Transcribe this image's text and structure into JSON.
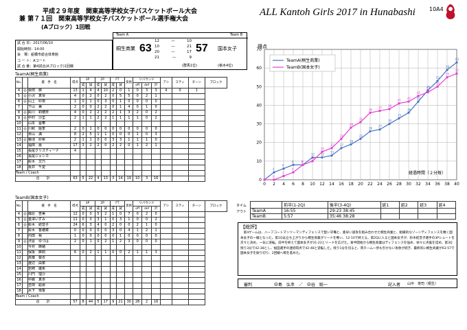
{
  "header": {
    "line1": "平成２９年度　関東高等学校女子バスケットボール大会",
    "line2": "兼 第７１回　関東高等学校女子バスケットボール選手権大会",
    "title_en": "ALL Kantoh Girls 2017 in Hunabashi",
    "game_code": "10A4",
    "block_label": "(Aブロック）1回戦"
  },
  "info": {
    "rows": [
      "試 合 日：2017/06/10",
      "開始時刻：14:00",
      "会　場：船橋市総合体育館",
      "コ ー ト：Aコート",
      "試 合 番：第4試合(Aブロック)1回戦"
    ]
  },
  "scoreboard": {
    "teamA_label": "Team A",
    "teamB_label": "Team B",
    "teamA": "桐生商業",
    "teamB": "国本女子",
    "scoreA": "63",
    "scoreB": "57",
    "quarters": [
      [
        "12",
        "10"
      ],
      [
        "10",
        "21"
      ],
      [
        "20",
        "17"
      ],
      [
        "21",
        "9"
      ]
    ],
    "teamA_seed": "(群馬1位)",
    "teamB_seed": "(栃木4位)"
  },
  "teamA": {
    "title": "TeamA(桐生商業)",
    "cols": [
      "No.",
      "",
      "選　手　名",
      "得点",
      "3P",
      "",
      "2P",
      "",
      "FT",
      "",
      "反則",
      "リバウンド",
      "",
      "",
      "アシ",
      "スティ",
      "ターン",
      "ブロック"
    ],
    "sub": [
      "成",
      "試",
      "成",
      "試",
      "成",
      "試",
      "off",
      "def",
      "計"
    ],
    "rows": [
      [
        "4",
        "◎",
        "栗田　麻",
        "13",
        "1",
        "4",
        "4",
        "10",
        "2",
        "0",
        "1",
        "0",
        "3",
        "3",
        "4",
        "0",
        "1"
      ],
      [
        "5",
        "◎",
        "小沢　真琴",
        "4",
        "0",
        "2",
        "0",
        "2",
        "0",
        "5",
        "5",
        "0",
        "2",
        "1"
      ],
      [
        "6",
        "◎",
        "山上　紗夜",
        "1",
        "0",
        "1",
        "0",
        "3",
        "0",
        "1",
        "0",
        "0",
        "0",
        "0"
      ],
      [
        "7",
        "",
        "下山　兼",
        "2",
        "0",
        "0",
        "2",
        "2",
        "0",
        "1",
        "4",
        "0",
        "1",
        "0"
      ],
      [
        "8",
        "◎",
        "鈴川　莉穂奈",
        "4",
        "0",
        "2",
        "2",
        "2",
        "2",
        "1",
        "3",
        "2",
        "0",
        "2"
      ],
      [
        "9",
        "◎",
        "中村　沙里",
        "2",
        "1",
        "1",
        "2",
        "2",
        "1",
        "1",
        "1",
        "1",
        "0",
        "2"
      ],
      [
        "10",
        "",
        "山本　蓉華",
        "",
        "",
        "",
        "",
        "",
        "",
        "",
        "",
        "",
        "",
        ""
      ],
      [
        "11",
        "◎",
        "川和　姫季",
        "2",
        "0",
        "1",
        "0",
        "0",
        "0",
        "0",
        "0",
        "0",
        "0",
        "0"
      ],
      [
        "12",
        "",
        "米山　満",
        "8",
        "2",
        "5",
        "1",
        "1",
        "0",
        "0",
        "0",
        "1",
        "0",
        "3"
      ],
      [
        "13",
        "◎",
        "菊池　紗希",
        "2",
        "1",
        "1",
        "0",
        "0",
        "3",
        "3",
        "1",
        "1",
        "1",
        "0"
      ],
      [
        "14",
        "",
        "福田　蕾",
        "17",
        "3",
        "2",
        "2",
        "0",
        "2",
        "2",
        "0",
        "1",
        "2",
        "1"
      ],
      [
        "15",
        "",
        "長尾クリスティーナ",
        "4",
        "",
        "",
        "",
        "",
        "",
        "",
        "",
        "",
        "",
        ""
      ],
      [
        "16",
        "",
        "長尾ジェシカ",
        "",
        "",
        "",
        "",
        "",
        "",
        "",
        "",
        "",
        "",
        ""
      ],
      [
        "17",
        "",
        "鈴木　文乃",
        "",
        "",
        "",
        "",
        "",
        "",
        "",
        "",
        "",
        "",
        ""
      ],
      [
        "18",
        "",
        "坂井　千愛",
        "",
        "",
        "",
        "",
        "",
        "",
        "",
        "",
        "",
        "",
        ""
      ]
    ],
    "coach_row": "Team / Coach",
    "total_label": "合　　計",
    "totals": [
      "63",
      "5",
      "22",
      "4",
      "13",
      "3",
      "14",
      "19",
      "10",
      "3",
      "16"
    ]
  },
  "teamB": {
    "title": "TeamB(国本女子)",
    "rows": [
      [
        "4",
        "◎",
        "篠原　杏美",
        "12",
        "0",
        "0",
        "5",
        "2",
        "1",
        "0",
        "7",
        "0",
        "2",
        "0"
      ],
      [
        "5",
        "◎",
        "金澤いずみ",
        "11",
        "0",
        "0",
        "3",
        "1",
        "0",
        "3",
        "1",
        "0",
        "0",
        "2"
      ],
      [
        "6",
        "◎",
        "鈴木　結音子",
        "24",
        "6",
        "3",
        "4",
        "0",
        "2",
        "0",
        "0",
        "2",
        "1",
        "0"
      ],
      [
        "7",
        "",
        "鈴木　香穂菜",
        "0",
        "0",
        "0",
        "0",
        "0",
        "3",
        "0",
        "4",
        "1",
        "2",
        "1"
      ],
      [
        "8",
        "",
        "内田　裕",
        "1",
        "0",
        "0",
        "0",
        "0",
        "0",
        "1",
        "0",
        "0",
        "0",
        "0"
      ],
      [
        "9",
        "◎",
        "渋谷　ゆづは",
        "2",
        "0",
        "1",
        "0",
        "2",
        "1",
        "2",
        "3",
        "0",
        "0",
        "0"
      ],
      [
        "10",
        "",
        "今井　麻緒",
        "",
        "",
        "",
        "",
        "",
        "",
        "",
        "",
        "",
        "",
        ""
      ],
      [
        "11",
        "",
        "保坂　麻莉",
        "6",
        "0",
        "2",
        "1",
        "1",
        "0",
        "0",
        "2",
        "1",
        "1",
        "3"
      ],
      [
        "12",
        "",
        "高橋　葵衣",
        "",
        "",
        "",
        "",
        "",
        "",
        "",
        "",
        "",
        "",
        ""
      ],
      [
        "13",
        "",
        "渡辺　由菜",
        "",
        "",
        "",
        "",
        "",
        "",
        "",
        "",
        "",
        "",
        ""
      ],
      [
        "14",
        "",
        "岩崎　雛希",
        "",
        "",
        "",
        "",
        "",
        "",
        "",
        "",
        "",
        "",
        ""
      ],
      [
        "15",
        "",
        "川門　理沙",
        "",
        "",
        "",
        "",
        "",
        "",
        "",
        "",
        "",
        "",
        ""
      ],
      [
        "16",
        "",
        "中嶋　真歩",
        "",
        "",
        "",
        "",
        "",
        "",
        "",
        "",
        "",
        "",
        ""
      ],
      [
        "17",
        "",
        "吉田　聡那",
        "",
        "",
        "",
        "",
        "",
        "",
        "",
        "",
        "",
        "",
        ""
      ],
      [
        "18",
        "",
        "木下　侑香",
        "",
        "",
        "",
        "",
        "",
        "",
        "",
        "",
        "",
        "",
        ""
      ]
    ],
    "coach_row": "Team / Coach",
    "total_label": "合　　計",
    "totals": [
      "57",
      "8",
      "44",
      "5",
      "17",
      "9",
      "21",
      "30",
      "28",
      "2",
      "16"
    ]
  },
  "timeline": {
    "label1": "タイム",
    "label2": "アウト",
    "headers": [
      "前半(1-2Q)",
      "後半(3-4Q)",
      "延1",
      "延2",
      "延3",
      "延4"
    ],
    "rows": [
      [
        "TeamA",
        "16:55",
        "29:23 38:45"
      ],
      [
        "TeamB",
        "5:57",
        "35:46 38:28"
      ]
    ]
  },
  "summary": {
    "title": "【総評】",
    "text": "　第4ゲームは、ハーフコートマンツーマンディフェンスで堅い守備と、素早い速攻を組み合わせた桐生商業と、組織的なゾーンディフェンスを敷く国本女子の一戦となった。第1Qは立ち上がりから桐生商業がリードを奪い、12-10で終える。第2Qに入ると国本女子が、鈴木結音子選手の3Pシュートを次々と決め、一気に逆転。前半を終えて国本女子が31-22とリードを広げた。後半開始から桐生商業はディフェンスを強め、徐々に点差を詰め、第3Q残り3分で42-38とし、福田選手の連続得点で42-48と逆転した。残り1分を切ると、両チーム一歩も引かない攻防が続き、最終的に桐生商業が63-57で国本女子を振り切り、2回戦へ駒を進めた。"
  },
  "signature": {
    "judge_label": "審判",
    "judges": "中島　弘幸　／　中谷　聡一",
    "writer_label": "記入者",
    "writer": "山中　将司（桐生）"
  },
  "chart_data": {
    "type": "line",
    "title": "",
    "ylabel": "得点",
    "xlabel": "経過時間（２分毎）",
    "legend_position": "top-left",
    "ylim": [
      0,
      70
    ],
    "xlim": [
      0,
      40
    ],
    "yticks": [
      0,
      10,
      20,
      30,
      40,
      50,
      60,
      70
    ],
    "xticks": [
      0,
      2,
      4,
      6,
      8,
      10,
      12,
      14,
      16,
      18,
      20,
      22,
      24,
      26,
      28,
      30,
      32,
      34,
      36,
      38,
      40
    ],
    "x": [
      0,
      2,
      4,
      6,
      8,
      10,
      12,
      14,
      16,
      18,
      20,
      22,
      24,
      26,
      28,
      30,
      32,
      34,
      36,
      38,
      40
    ],
    "series": [
      {
        "name": "TeamA(桐生商業)",
        "color": "#4472C4",
        "values": [
          0,
          4,
          6,
          8,
          8,
          12,
          12,
          13,
          17,
          19,
          22,
          26,
          27,
          30,
          33,
          36,
          42,
          48,
          53,
          59,
          63
        ]
      },
      {
        "name": "TeamB(国本女子)",
        "color": "#E040D0",
        "values": [
          0,
          0,
          2,
          4,
          8,
          10,
          15,
          17,
          22,
          28,
          31,
          36,
          37,
          38,
          41,
          42,
          45,
          47,
          50,
          55,
          57
        ]
      }
    ]
  }
}
